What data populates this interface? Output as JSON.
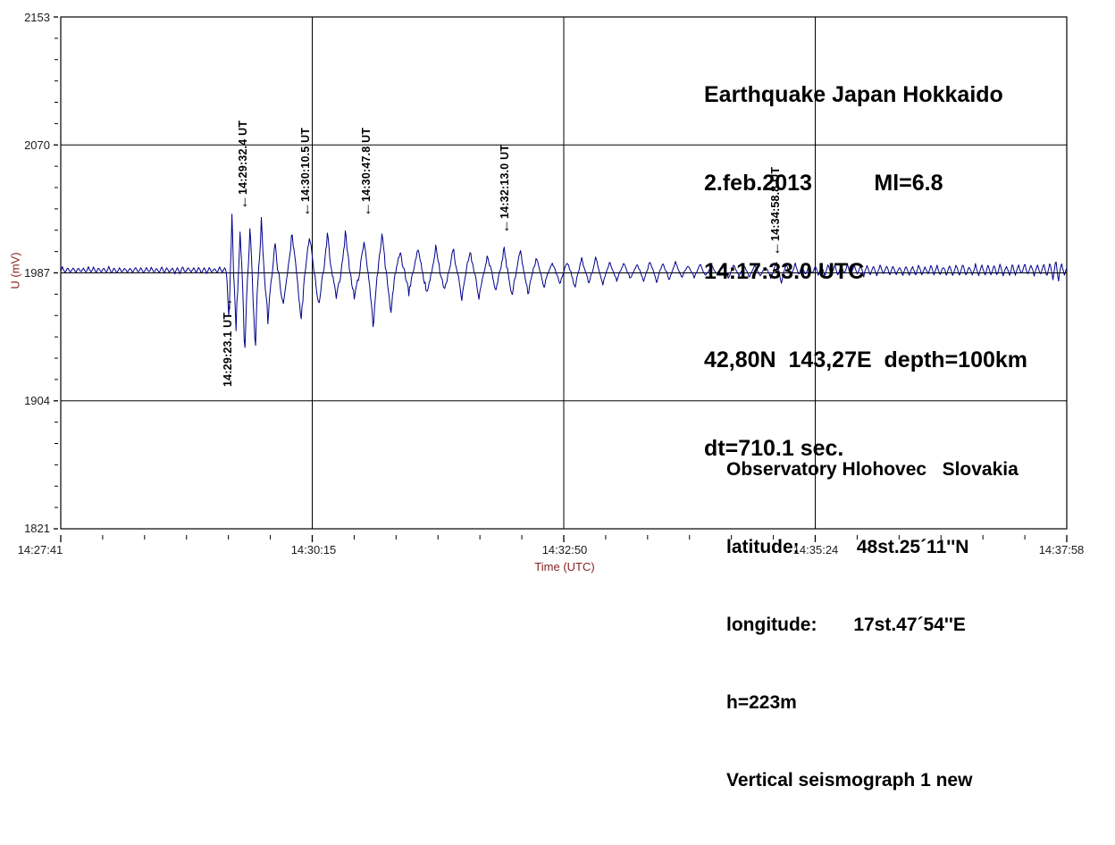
{
  "colors": {
    "trace": "#00008B",
    "grid": "#000000",
    "tick_text": "#1c1c1c",
    "axis_label_text": "#8B2323"
  },
  "title_block": {
    "lines": [
      "Earthquake Japan Hokkaido",
      "2.feb.2013          Ml=6.8",
      "14:17:33.0 UTC",
      "42,80N  143,27E  depth=100km",
      "dt=710.1 sec."
    ]
  },
  "station_block": {
    "lines": [
      "Observatory Hlohovec   Slovakia",
      "latitude:           48st.25´11''N",
      "longitude:       17st.47´54''E",
      "h=223m",
      "Vertical seismograph 1 new"
    ]
  },
  "chart_data": {
    "type": "line",
    "title": "Earthquake Japan Hokkaido 2.feb.2013 vertical seismogram, Observatory Hlohovec Slovakia",
    "xlabel": "Time (UTC)",
    "ylabel": "U (mV)",
    "x_ticks": [
      "14:27:41",
      "14:30:15",
      "14:32:50",
      "14:35:24",
      "14:37:58"
    ],
    "y_ticks": [
      2153,
      2070,
      1987,
      1904,
      1821
    ],
    "ylim": [
      1821,
      2153
    ],
    "duration_s": 617,
    "x_minor_divisions": 6,
    "y_minor_divisions": 6,
    "grid": "major-only",
    "baseline_mV": 1987,
    "arrivals": [
      {
        "label": "14:29:23.1 UT",
        "arrow_glyph": "→",
        "t_s": 102.1,
        "direction": "up",
        "tip_mV": 1971
      },
      {
        "label": "14:29:32.4 UT",
        "arrow_glyph": "←",
        "t_s": 111.4,
        "direction": "down",
        "tip_mV": 2028
      },
      {
        "label": "14:30:10.5 UT",
        "arrow_glyph": "←",
        "t_s": 149.5,
        "direction": "down",
        "tip_mV": 2023
      },
      {
        "label": "14:30:47.8 UT",
        "arrow_glyph": "←",
        "t_s": 186.8,
        "direction": "down",
        "tip_mV": 2023
      },
      {
        "label": "14:32:13.0 UT",
        "arrow_glyph": "←",
        "t_s": 272.0,
        "direction": "down",
        "tip_mV": 2012
      },
      {
        "label": "14:34:58.8 UT",
        "arrow_glyph": "←",
        "t_s": 437.8,
        "direction": "down",
        "tip_mV": 1998
      }
    ],
    "trace_synthesis": {
      "seed": 20130202,
      "sample_dt_s": 0.5,
      "envelope_mV": [
        [
          0,
          2.4
        ],
        [
          100,
          2.4
        ],
        [
          101.5,
          4
        ],
        [
          102.6,
          16
        ],
        [
          103.5,
          40
        ],
        [
          105,
          43
        ],
        [
          107,
          46
        ],
        [
          109,
          36
        ],
        [
          111,
          46
        ],
        [
          113,
          40
        ],
        [
          115,
          31
        ],
        [
          117,
          43
        ],
        [
          119,
          34
        ],
        [
          121,
          30
        ],
        [
          123,
          37
        ],
        [
          125,
          29
        ],
        [
          127,
          32
        ],
        [
          130,
          34
        ],
        [
          133,
          27
        ],
        [
          136,
          30
        ],
        [
          140,
          27
        ],
        [
          143,
          31
        ],
        [
          147,
          28
        ],
        [
          150,
          34
        ],
        [
          153,
          27
        ],
        [
          157,
          30
        ],
        [
          161,
          25
        ],
        [
          165,
          30
        ],
        [
          169,
          26
        ],
        [
          173,
          31
        ],
        [
          177,
          28
        ],
        [
          181,
          27
        ],
        [
          185,
          33
        ],
        [
          189,
          28
        ],
        [
          193,
          31
        ],
        [
          197,
          27
        ],
        [
          201,
          28
        ],
        [
          206,
          25
        ],
        [
          211,
          26
        ],
        [
          216,
          23
        ],
        [
          221,
          24
        ],
        [
          227,
          21
        ],
        [
          233,
          22
        ],
        [
          239,
          19
        ],
        [
          245,
          21
        ],
        [
          251,
          18
        ],
        [
          257,
          20
        ],
        [
          263,
          17
        ],
        [
          268,
          19
        ],
        [
          272,
          24
        ],
        [
          276,
          17
        ],
        [
          282,
          15
        ],
        [
          288,
          14
        ],
        [
          295,
          13
        ],
        [
          302,
          12
        ],
        [
          310,
          11
        ],
        [
          318,
          10
        ],
        [
          326,
          9.5
        ],
        [
          335,
          9
        ],
        [
          345,
          8
        ],
        [
          355,
          7.5
        ],
        [
          365,
          7
        ],
        [
          375,
          6.5
        ],
        [
          385,
          6
        ],
        [
          395,
          5.5
        ],
        [
          405,
          5
        ],
        [
          415,
          4.8
        ],
        [
          425,
          4.5
        ],
        [
          432,
          4.6
        ],
        [
          436,
          8
        ],
        [
          440,
          10
        ],
        [
          444,
          7
        ],
        [
          448,
          5
        ],
        [
          455,
          4.2
        ],
        [
          470,
          4
        ],
        [
          500,
          4
        ],
        [
          530,
          3.9
        ],
        [
          560,
          4
        ],
        [
          585,
          4.4
        ],
        [
          600,
          4.6
        ],
        [
          608,
          6
        ],
        [
          611,
          11
        ],
        [
          613,
          5
        ],
        [
          617,
          4.2
        ]
      ],
      "bias_mV": [
        [
          0,
          1.8
        ],
        [
          101,
          1.8
        ],
        [
          103,
          -4
        ],
        [
          112,
          -6
        ],
        [
          125,
          -3
        ],
        [
          140,
          -0.5
        ],
        [
          220,
          0
        ],
        [
          300,
          0.6
        ],
        [
          380,
          1.2
        ],
        [
          430,
          1.3
        ],
        [
          450,
          1.6
        ],
        [
          617,
          1.8
        ]
      ],
      "period_s": [
        [
          0,
          3.2
        ],
        [
          100,
          3.2
        ],
        [
          103,
          4.6
        ],
        [
          118,
          6.5
        ],
        [
          130,
          9
        ],
        [
          140,
          11
        ],
        [
          210,
          11
        ],
        [
          280,
          10
        ],
        [
          340,
          8.5
        ],
        [
          420,
          6.5
        ],
        [
          442,
          6.5
        ],
        [
          455,
          4
        ],
        [
          617,
          3.8
        ]
      ],
      "negative_lobe_gain": [
        [
          0,
          1
        ],
        [
          101,
          1
        ],
        [
          104,
          1.5
        ],
        [
          118,
          1.35
        ],
        [
          135,
          1.15
        ],
        [
          160,
          1.1
        ],
        [
          220,
          1.05
        ],
        [
          300,
          1
        ],
        [
          617,
          1
        ]
      ]
    }
  }
}
